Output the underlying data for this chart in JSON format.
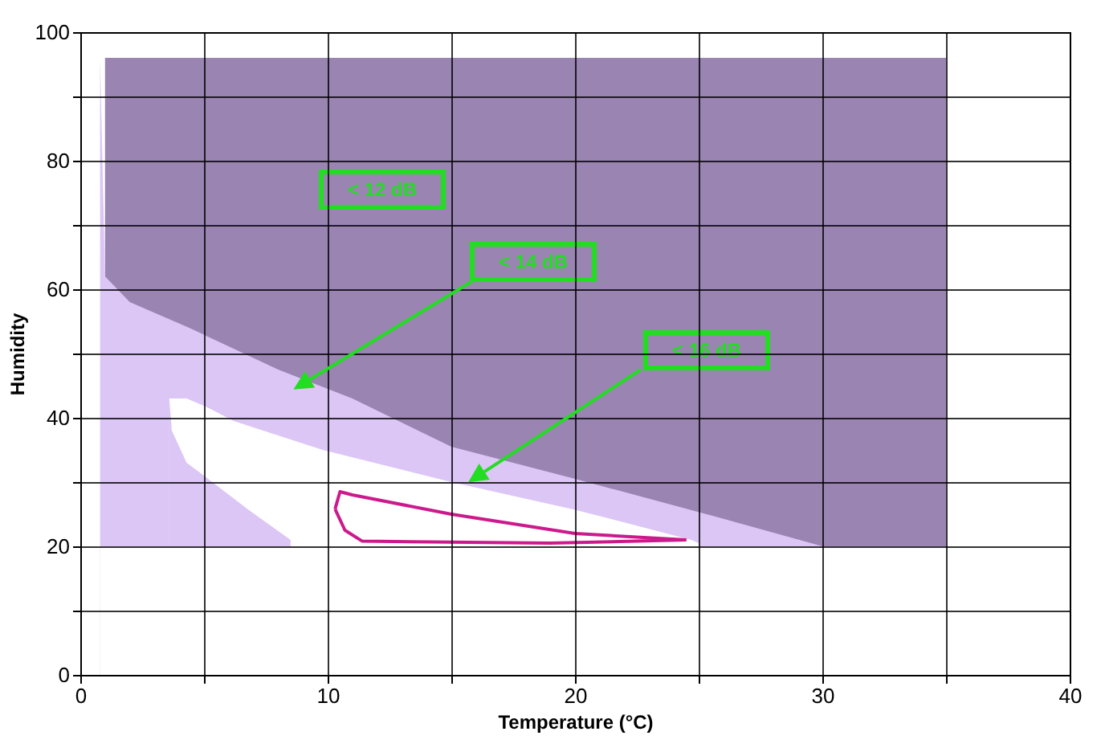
{
  "chart_data": {
    "type": "area",
    "xlabel": "Temperature (°C)",
    "ylabel": "Humidity",
    "xlim": [
      0,
      40
    ],
    "xticks": [
      0,
      {
        "value": 5,
        "label": null
      },
      10,
      {
        "value": 15,
        "label": null
      },
      20,
      {
        "value": 25,
        "label": null
      },
      30,
      {
        "value": 35,
        "label": null
      },
      40
    ],
    "ylim": [
      0,
      100
    ],
    "yticks": [
      0,
      {
        "value": 10,
        "label": null
      },
      20,
      {
        "value": 30,
        "label": null
      },
      40,
      {
        "value": 50,
        "label": null
      },
      60,
      {
        "value": 70,
        "label": null
      },
      80,
      {
        "value": 90,
        "label": null
      },
      100
    ],
    "grid": true,
    "series": [
      {
        "color": "#9a84b2",
        "x": [
          1,
          35
        ],
        "values": [
          96,
          96
        ]
      },
      {
        "color": "#dcc6f5",
        "x": [
          0.8,
          1,
          2,
          4.4,
          8,
          11,
          15,
          20,
          25.8,
          30
        ],
        "values": [
          96,
          62,
          58,
          54,
          47.5,
          43,
          35.5,
          30.5,
          24.5,
          20
        ]
      },
      {
        "color": "#ffffff",
        "x": [
          3.6,
          4.3,
          5.1,
          6.2,
          9.8,
          15,
          20,
          24.7,
          25
        ],
        "values": [
          43,
          43,
          41.7,
          39.5,
          35,
          30,
          25.7,
          21,
          20.5
        ]
      },
      {
        "color": "#dcc6f5",
        "x": [
          3.6,
          3.7,
          4.3,
          5.1,
          6.8,
          8.5
        ],
        "values": [
          43,
          38,
          33,
          30.7,
          25.7,
          21
        ]
      },
      {
        "color": "#ffffff",
        "x": [
          0.8,
          35
        ],
        "values": [
          20,
          20
        ]
      },
      {
        "type": "line",
        "color": "#cc1a8c",
        "x": [
          10.3,
          10.5,
          11,
          15,
          20,
          24.5
        ],
        "values": [
          25.8,
          28.5,
          28,
          25,
          22,
          21
        ]
      },
      {
        "type": "line",
        "color": "#cc1a8c",
        "x": [
          10.3,
          10.7,
          11.4,
          19,
          24.5
        ],
        "values": [
          25.8,
          22.5,
          20.8,
          20.5,
          21
        ]
      }
    ],
    "annotations": [
      "< 12 dB",
      "< 14 dB",
      "< 16 dB"
    ]
  }
}
